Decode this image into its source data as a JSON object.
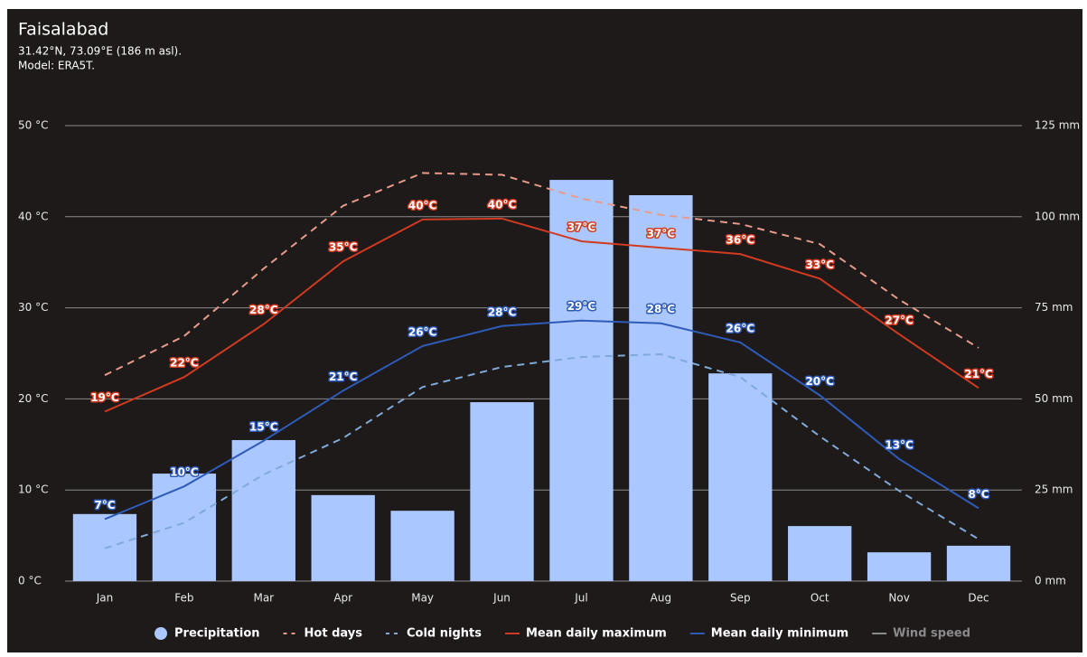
{
  "chart_data": {
    "type": "combo",
    "title": "Faisalabad",
    "subtitle": "31.42°N, 73.09°E (186 m asl).",
    "model": "Model: ERA5T.",
    "categories": [
      "Jan",
      "Feb",
      "Mar",
      "Apr",
      "May",
      "Jun",
      "Jul",
      "Aug",
      "Sep",
      "Oct",
      "Nov",
      "Dec"
    ],
    "ylim": [
      0,
      50
    ],
    "yticks": [
      {
        "value": 0,
        "label": "0 °C"
      },
      {
        "value": 10,
        "label": "10 °C"
      },
      {
        "value": 20,
        "label": "20 °C"
      },
      {
        "value": 30,
        "label": "30 °C"
      },
      {
        "value": 40,
        "label": "40 °C"
      },
      {
        "value": 50,
        "label": "50 °C"
      }
    ],
    "y2lim": [
      0,
      125
    ],
    "y2ticks": [
      {
        "value": 0,
        "label": "0 mm"
      },
      {
        "value": 25,
        "label": "25 mm"
      },
      {
        "value": 50,
        "label": "50 mm"
      },
      {
        "value": 75,
        "label": "75 mm"
      },
      {
        "value": 100,
        "label": "100 mm"
      },
      {
        "value": 125,
        "label": "125 mm"
      }
    ],
    "grid": true,
    "legend": "bottom",
    "series": [
      {
        "name": "Precipitation",
        "type": "bar",
        "axis": "y2",
        "color": "#aac8ff",
        "values": [
          18.4,
          29.5,
          38.7,
          23.6,
          19.3,
          49.1,
          110.1,
          105.9,
          57.0,
          15.1,
          7.9,
          9.7
        ]
      },
      {
        "name": "Hot days",
        "type": "line",
        "dashed": true,
        "color": "#e89a8a",
        "values": [
          22.6,
          26.9,
          34.3,
          41.2,
          44.8,
          44.6,
          42.0,
          40.2,
          39.2,
          37.0,
          30.9,
          25.6
        ]
      },
      {
        "name": "Cold nights",
        "type": "line",
        "dashed": true,
        "color": "#7fa9d8",
        "values": [
          3.6,
          6.4,
          11.7,
          15.7,
          21.3,
          23.5,
          24.6,
          24.9,
          22.4,
          15.9,
          9.9,
          4.6
        ]
      },
      {
        "name": "Mean daily maximum",
        "type": "line",
        "color": "#d03a20",
        "values": [
          18.6,
          22.4,
          28.2,
          35.1,
          39.7,
          39.8,
          37.3,
          36.6,
          35.9,
          33.2,
          27.1,
          21.2
        ],
        "value_labels": [
          "19°C",
          "22°C",
          "28°C",
          "35°C",
          "40°C",
          "40°C",
          "37°C",
          "37°C",
          "36°C",
          "33°C",
          "27°C",
          "21°C"
        ]
      },
      {
        "name": "Mean daily minimum",
        "type": "line",
        "color": "#2f5bb8",
        "values": [
          6.8,
          10.4,
          15.4,
          20.9,
          25.8,
          28.0,
          28.6,
          28.3,
          26.2,
          20.4,
          13.4,
          8.0
        ],
        "value_labels": [
          "7°C",
          "10°C",
          "15°C",
          "21°C",
          "26°C",
          "28°C",
          "29°C",
          "28°C",
          "26°C",
          "20°C",
          "13°C",
          "8°C"
        ]
      },
      {
        "name": "Wind speed",
        "type": "line",
        "visible": false,
        "color": "#8a8a8a"
      }
    ]
  }
}
